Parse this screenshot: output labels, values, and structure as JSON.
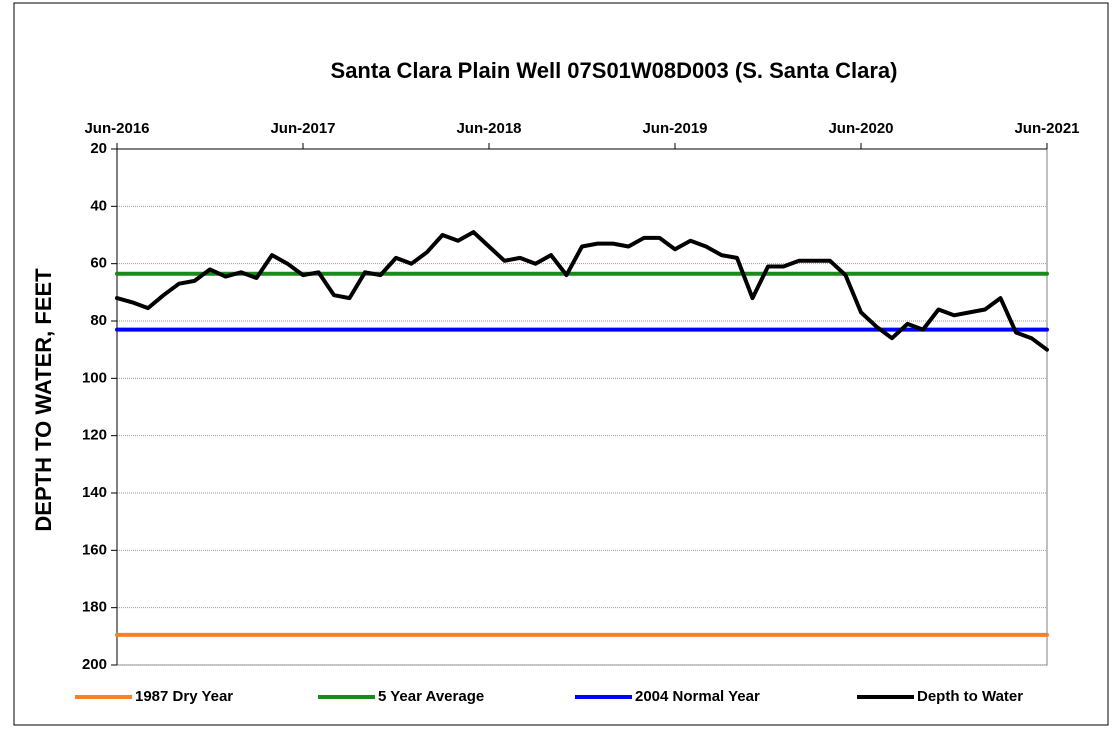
{
  "chart_data": {
    "type": "line",
    "title": "Santa Clara Plain Well 07S01W08D003   (S. Santa Clara)",
    "y_label": "DEPTH TO WATER, FEET",
    "categories": [
      "Jun-2016",
      null,
      null,
      null,
      null,
      null,
      null,
      null,
      null,
      null,
      null,
      null,
      "Jun-2017",
      null,
      null,
      null,
      null,
      null,
      null,
      null,
      null,
      null,
      null,
      null,
      "Jun-2018",
      null,
      null,
      null,
      null,
      null,
      null,
      null,
      null,
      null,
      null,
      null,
      "Jun-2019",
      null,
      null,
      null,
      null,
      null,
      null,
      null,
      null,
      null,
      null,
      null,
      "Jun-2020",
      null,
      null,
      null,
      null,
      null,
      null,
      null,
      null,
      null,
      null,
      null,
      "Jun-2021"
    ],
    "ylim": [
      200,
      20
    ],
    "yticks": [
      20,
      40,
      60,
      80,
      100,
      120,
      140,
      160,
      180,
      200
    ],
    "y_inverted": true,
    "grid": true,
    "series": [
      {
        "name": "1987 Dry Year",
        "color": "#ff7f27",
        "values": [
          189.5,
          189.5,
          189.5,
          189.5,
          189.5,
          189.5,
          189.5,
          189.5,
          189.5,
          189.5,
          189.5,
          189.5,
          189.5,
          189.5,
          189.5,
          189.5,
          189.5,
          189.5,
          189.5,
          189.5,
          189.5,
          189.5,
          189.5,
          189.5,
          189.5,
          189.5,
          189.5,
          189.5,
          189.5,
          189.5,
          189.5,
          189.5,
          189.5,
          189.5,
          189.5,
          189.5,
          189.5,
          189.5,
          189.5,
          189.5,
          189.5,
          189.5,
          189.5,
          189.5,
          189.5,
          189.5,
          189.5,
          189.5,
          189.5,
          189.5,
          189.5,
          189.5,
          189.5,
          189.5,
          189.5,
          189.5,
          189.5,
          189.5,
          189.5,
          189.5,
          189.5
        ]
      },
      {
        "name": "5 Year Average",
        "color": "#1a8a1a",
        "values": [
          63.5,
          63.5,
          63.5,
          63.5,
          63.5,
          63.5,
          63.5,
          63.5,
          63.5,
          63.5,
          63.5,
          63.5,
          63.5,
          63.5,
          63.5,
          63.5,
          63.5,
          63.5,
          63.5,
          63.5,
          63.5,
          63.5,
          63.5,
          63.5,
          63.5,
          63.5,
          63.5,
          63.5,
          63.5,
          63.5,
          63.5,
          63.5,
          63.5,
          63.5,
          63.5,
          63.5,
          63.5,
          63.5,
          63.5,
          63.5,
          63.5,
          63.5,
          63.5,
          63.5,
          63.5,
          63.5,
          63.5,
          63.5,
          63.5,
          63.5,
          63.5,
          63.5,
          63.5,
          63.5,
          63.5,
          63.5,
          63.5,
          63.5,
          63.5,
          63.5,
          63.5
        ]
      },
      {
        "name": "2004 Normal Year",
        "color": "#0000ff",
        "values": [
          83,
          83,
          83,
          83,
          83,
          83,
          83,
          83,
          83,
          83,
          83,
          83,
          83,
          83,
          83,
          83,
          83,
          83,
          83,
          83,
          83,
          83,
          83,
          83,
          83,
          83,
          83,
          83,
          83,
          83,
          83,
          83,
          83,
          83,
          83,
          83,
          83,
          83,
          83,
          83,
          83,
          83,
          83,
          83,
          83,
          83,
          83,
          83,
          83,
          83,
          83,
          83,
          83,
          83,
          83,
          83,
          83,
          83,
          83,
          83,
          83
        ]
      },
      {
        "name": "Depth to Water",
        "color": "#000000",
        "values": [
          72,
          73.5,
          75.5,
          71,
          67,
          66,
          62,
          64.5,
          63,
          65,
          57,
          60,
          64,
          63,
          71,
          72,
          63,
          64,
          58,
          60,
          56,
          50,
          52,
          49,
          54,
          59,
          58,
          60,
          57,
          64,
          54,
          53,
          53,
          54,
          51,
          51,
          55,
          52,
          54,
          57,
          58,
          72,
          61,
          61,
          59,
          59,
          59,
          64,
          77,
          82,
          86,
          81,
          83,
          76,
          78,
          77,
          76,
          72,
          84,
          86,
          90
        ]
      }
    ]
  }
}
